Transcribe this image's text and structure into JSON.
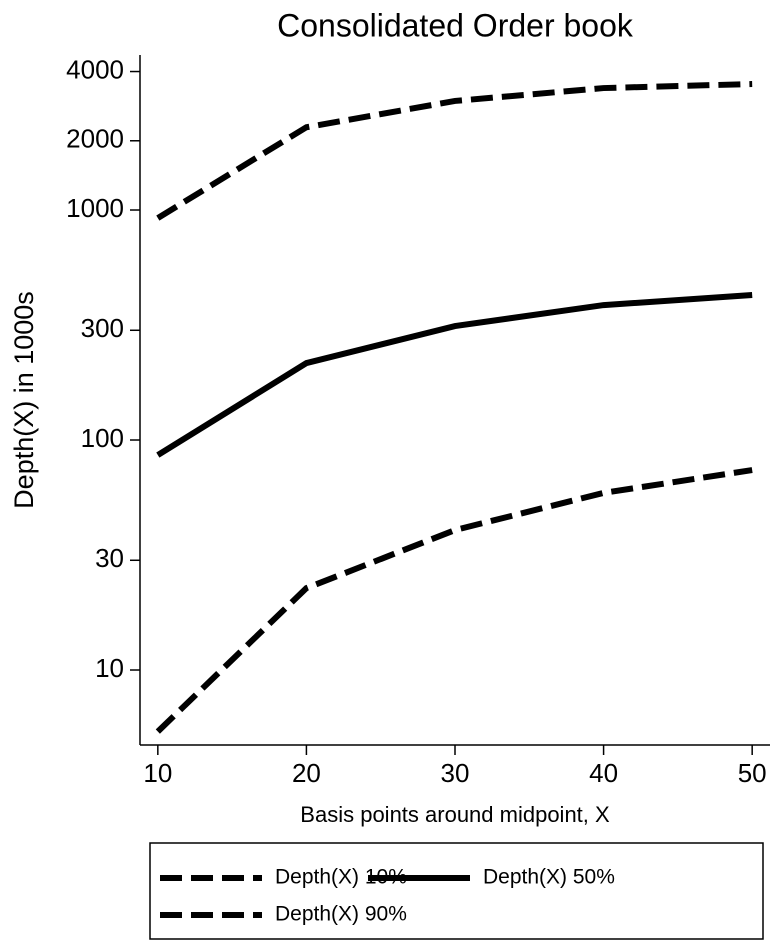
{
  "chart_data": {
    "type": "line",
    "title": "Consolidated Order book",
    "x_label": "Basis points around midpoint, X",
    "y_label": "Depth(X) in 1000s",
    "x": [
      10,
      20,
      30,
      40,
      50
    ],
    "series": [
      {
        "name": "Depth(X) 10%",
        "color": "#000000",
        "style": "dashed",
        "values": [
          5.4,
          22.7,
          40.6,
          58.9,
          74
        ]
      },
      {
        "name": "Depth(X) 50%",
        "color": "#000000",
        "style": "solid",
        "values": [
          86,
          216,
          313,
          386,
          427
        ]
      },
      {
        "name": "Depth(X) 90%",
        "color": "#000000",
        "style": "dashed",
        "values": [
          923,
          2290,
          2980,
          3390,
          3530
        ]
      }
    ],
    "y_scale": "log",
    "xlim": [
      8.8,
      51.2
    ],
    "xticks": [
      10,
      20,
      30,
      40,
      50
    ],
    "ylim": [
      4.72,
      4720
    ],
    "yticks": [
      10,
      30,
      100,
      300,
      1000,
      2000,
      4000
    ],
    "grid": false
  }
}
